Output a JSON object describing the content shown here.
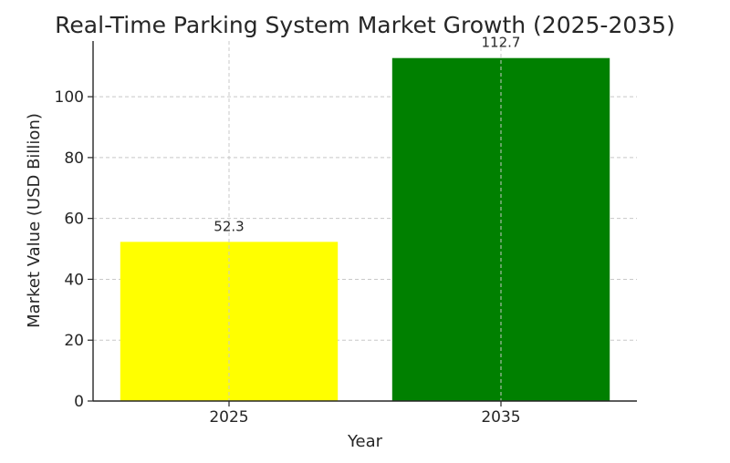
{
  "chart_data": {
    "type": "bar",
    "title": "Real-Time Parking System Market Growth (2025-2035)",
    "xlabel": "Year",
    "ylabel": "Market Value (USD Billion)",
    "categories": [
      "2025",
      "2035"
    ],
    "values": [
      52.3,
      112.7
    ],
    "data_labels": [
      "52.3",
      "112.7"
    ],
    "colors": [
      "#ffff00",
      "#008000"
    ],
    "ylim": [
      0,
      118.3
    ],
    "yticks": [
      0,
      20,
      40,
      60,
      80,
      100
    ],
    "ytick_labels": [
      "0",
      "20",
      "40",
      "60",
      "80",
      "100"
    ],
    "grid": true
  }
}
